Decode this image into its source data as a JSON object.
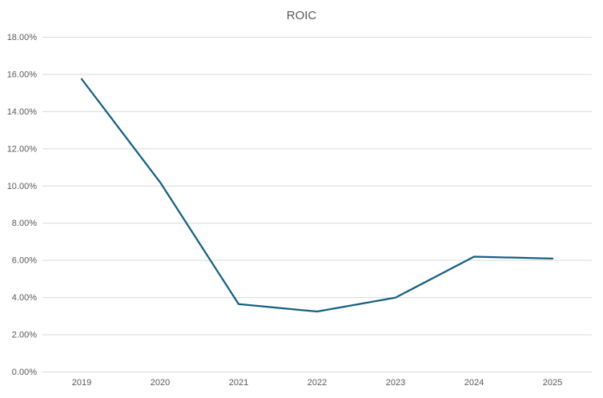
{
  "chart_data": {
    "type": "line",
    "title": "ROIC",
    "categories": [
      "2019",
      "2020",
      "2021",
      "2022",
      "2023",
      "2024",
      "2025"
    ],
    "series": [
      {
        "name": "ROIC",
        "values": [
          15.75,
          10.2,
          3.65,
          3.25,
          4.0,
          6.2,
          6.1
        ]
      }
    ],
    "ylim": [
      0,
      18
    ],
    "ytick_step": 2,
    "ytick_labels": [
      "0.00%",
      "2.00%",
      "4.00%",
      "6.00%",
      "8.00%",
      "10.00%",
      "12.00%",
      "14.00%",
      "16.00%",
      "18.00%"
    ],
    "xlabel": "",
    "ylabel": "",
    "grid": "horizontal",
    "legend": "none",
    "value_unit": "percent",
    "line_color": "#156082",
    "grid_color": "#d9d9d9",
    "text_color": "#595959",
    "background": "#ffffff"
  }
}
